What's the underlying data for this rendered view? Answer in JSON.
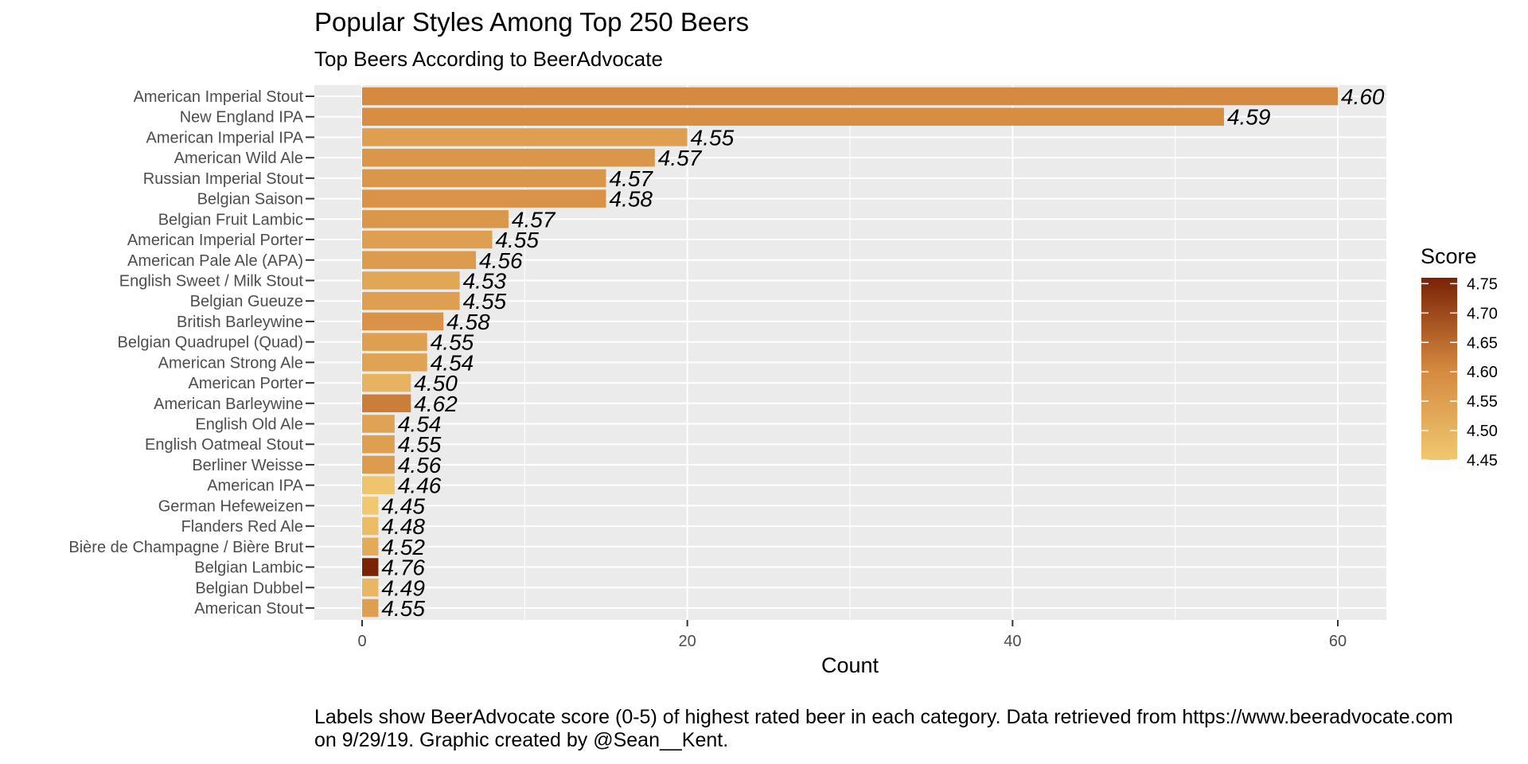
{
  "chart_data": {
    "type": "bar",
    "orientation": "horizontal",
    "title": "Popular Styles Among Top 250 Beers",
    "subtitle": "Top Beers According to BeerAdvocate",
    "xlabel": "Count",
    "ylabel": "",
    "xlim": [
      0,
      63
    ],
    "x_ticks": [
      0,
      20,
      40,
      60
    ],
    "grid": true,
    "legend": {
      "title": "Score",
      "placement": "right",
      "range": [
        4.45,
        4.76
      ],
      "ticks": [
        "4.75",
        "4.70",
        "4.65",
        "4.60",
        "4.55",
        "4.50",
        "4.45"
      ],
      "low_color": "#F0C870",
      "high_color": "#7A2206"
    },
    "categories": [
      "American Imperial Stout",
      "New England IPA",
      "American Imperial IPA",
      "American Wild Ale",
      "Russian Imperial Stout",
      "Belgian Saison",
      "Belgian Fruit Lambic",
      "American Imperial Porter",
      "American Pale Ale (APA)",
      "English Sweet / Milk Stout",
      "Belgian Gueuze",
      "British Barleywine",
      "Belgian Quadrupel (Quad)",
      "American Strong Ale",
      "American Porter",
      "American Barleywine",
      "English Old Ale",
      "English Oatmeal Stout",
      "Berliner Weisse",
      "American IPA",
      "German Hefeweizen",
      "Flanders Red Ale",
      "Bière de Champagne / Bière Brut",
      "Belgian Lambic",
      "Belgian Dubbel",
      "American Stout"
    ],
    "values": [
      60,
      53,
      20,
      18,
      15,
      15,
      9,
      8,
      7,
      6,
      6,
      5,
      4,
      4,
      3,
      3,
      2,
      2,
      2,
      2,
      1,
      1,
      1,
      1,
      1,
      1
    ],
    "labels": [
      "4.60",
      "4.59",
      "4.55",
      "4.57",
      "4.57",
      "4.58",
      "4.57",
      "4.55",
      "4.56",
      "4.53",
      "4.55",
      "4.58",
      "4.55",
      "4.54",
      "4.50",
      "4.62",
      "4.54",
      "4.55",
      "4.56",
      "4.46",
      "4.45",
      "4.48",
      "4.52",
      "4.76",
      "4.49",
      "4.55"
    ],
    "scores": [
      4.6,
      4.59,
      4.55,
      4.57,
      4.57,
      4.58,
      4.57,
      4.55,
      4.56,
      4.53,
      4.55,
      4.58,
      4.55,
      4.54,
      4.5,
      4.62,
      4.54,
      4.55,
      4.56,
      4.46,
      4.45,
      4.48,
      4.52,
      4.76,
      4.49,
      4.55
    ],
    "colors": {
      "panel_background": "#EBEBEB",
      "grid": "#FFFFFF"
    }
  },
  "caption": "Labels show BeerAdvocate score (0-5) of highest rated beer in each category.  Data retrieved from https://www.beeradvocate.com\non 9/29/19.  Graphic created by @Sean__Kent."
}
